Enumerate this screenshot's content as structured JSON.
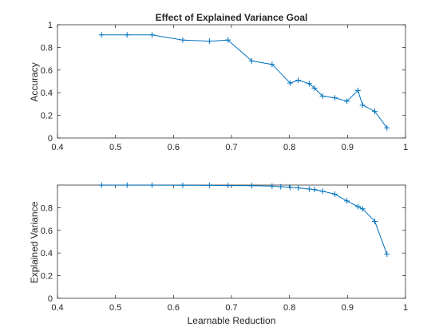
{
  "chart_data": [
    {
      "type": "line",
      "title": "Effect of Explained Variance Goal",
      "xlabel": "",
      "ylabel": "Accuracy",
      "xlim": [
        0.4,
        1
      ],
      "ylim": [
        0,
        1
      ],
      "xticks": [
        "0.4",
        "0.5",
        "0.6",
        "0.7",
        "0.8",
        "0.9",
        "1"
      ],
      "yticks": [
        "0",
        "0.2",
        "0.4",
        "0.6",
        "0.8",
        "1"
      ],
      "grid": false,
      "color": "#0072BD",
      "marker": "plus",
      "x": [
        0.476,
        0.52,
        0.563,
        0.616,
        0.662,
        0.694,
        0.735,
        0.77,
        0.801,
        0.815,
        0.834,
        0.843,
        0.857,
        0.878,
        0.899,
        0.918,
        0.926,
        0.947,
        0.968
      ],
      "y": [
        0.91,
        0.91,
        0.91,
        0.865,
        0.855,
        0.865,
        0.68,
        0.65,
        0.485,
        0.51,
        0.48,
        0.44,
        0.37,
        0.355,
        0.325,
        0.42,
        0.29,
        0.235,
        0.09
      ]
    },
    {
      "type": "line",
      "title": "",
      "xlabel": "Learnable Reduction",
      "ylabel": "Explained Variance",
      "xlim": [
        0.4,
        1
      ],
      "ylim": [
        0,
        1
      ],
      "xticks": [
        "0.4",
        "0.5",
        "0.6",
        "0.7",
        "0.8",
        "0.9",
        "1"
      ],
      "yticks": [
        "0",
        "0.2",
        "0.4",
        "0.6",
        "0.8"
      ],
      "grid": false,
      "color": "#0072BD",
      "marker": "plus",
      "x": [
        0.476,
        0.52,
        0.563,
        0.616,
        0.662,
        0.694,
        0.735,
        0.77,
        0.785,
        0.801,
        0.815,
        0.834,
        0.843,
        0.857,
        0.878,
        0.899,
        0.918,
        0.926,
        0.947,
        0.968
      ],
      "y": [
        0.999,
        0.999,
        0.999,
        0.998,
        0.997,
        0.996,
        0.995,
        0.99,
        0.985,
        0.98,
        0.975,
        0.965,
        0.96,
        0.945,
        0.92,
        0.86,
        0.81,
        0.79,
        0.68,
        0.39
      ]
    }
  ]
}
